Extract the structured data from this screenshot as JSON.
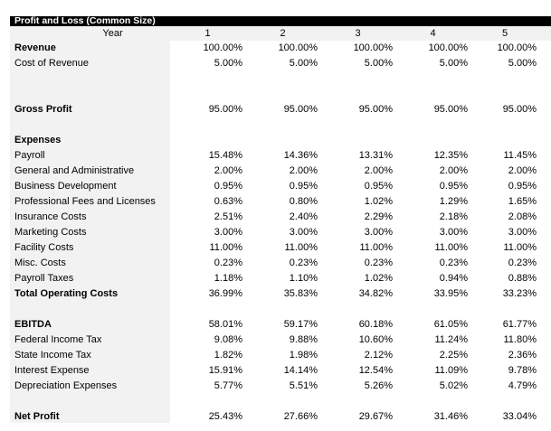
{
  "title": "Profit and Loss (Common Size)",
  "header": {
    "label": "Year",
    "years": [
      "1",
      "2",
      "3",
      "4",
      "5"
    ]
  },
  "rows": [
    {
      "label": "Revenue",
      "bold": true,
      "values": [
        "100.00%",
        "100.00%",
        "100.00%",
        "100.00%",
        "100.00%"
      ]
    },
    {
      "label": "Cost of Revenue",
      "values": [
        "5.00%",
        "5.00%",
        "5.00%",
        "5.00%",
        "5.00%"
      ]
    },
    {
      "label": "",
      "values": []
    },
    {
      "label": "",
      "values": []
    },
    {
      "label": "Gross Profit",
      "bold": true,
      "values": [
        "95.00%",
        "95.00%",
        "95.00%",
        "95.00%",
        "95.00%"
      ]
    },
    {
      "label": "",
      "values": []
    },
    {
      "label": "Expenses",
      "bold": true,
      "values": []
    },
    {
      "label": "Payroll",
      "values": [
        "15.48%",
        "14.36%",
        "13.31%",
        "12.35%",
        "11.45%"
      ]
    },
    {
      "label": "General and Administrative",
      "values": [
        "2.00%",
        "2.00%",
        "2.00%",
        "2.00%",
        "2.00%"
      ]
    },
    {
      "label": "Business Development",
      "values": [
        "0.95%",
        "0.95%",
        "0.95%",
        "0.95%",
        "0.95%"
      ]
    },
    {
      "label": "Professional Fees and Licenses",
      "values": [
        "0.63%",
        "0.80%",
        "1.02%",
        "1.29%",
        "1.65%"
      ]
    },
    {
      "label": "Insurance Costs",
      "values": [
        "2.51%",
        "2.40%",
        "2.29%",
        "2.18%",
        "2.08%"
      ]
    },
    {
      "label": "Marketing Costs",
      "values": [
        "3.00%",
        "3.00%",
        "3.00%",
        "3.00%",
        "3.00%"
      ]
    },
    {
      "label": "Facility Costs",
      "values": [
        "11.00%",
        "11.00%",
        "11.00%",
        "11.00%",
        "11.00%"
      ]
    },
    {
      "label": "Misc. Costs",
      "values": [
        "0.23%",
        "0.23%",
        "0.23%",
        "0.23%",
        "0.23%"
      ]
    },
    {
      "label": "Payroll Taxes",
      "values": [
        "1.18%",
        "1.10%",
        "1.02%",
        "0.94%",
        "0.88%"
      ]
    },
    {
      "label": "Total Operating Costs",
      "bold": true,
      "values": [
        "36.99%",
        "35.83%",
        "34.82%",
        "33.95%",
        "33.23%"
      ]
    },
    {
      "label": "",
      "values": []
    },
    {
      "label": "EBITDA",
      "bold": true,
      "values": [
        "58.01%",
        "59.17%",
        "60.18%",
        "61.05%",
        "61.77%"
      ]
    },
    {
      "label": "Federal Income Tax",
      "values": [
        "9.08%",
        "9.88%",
        "10.60%",
        "11.24%",
        "11.80%"
      ]
    },
    {
      "label": "State Income Tax",
      "values": [
        "1.82%",
        "1.98%",
        "2.12%",
        "2.25%",
        "2.36%"
      ]
    },
    {
      "label": "Interest Expense",
      "values": [
        "15.91%",
        "14.14%",
        "12.54%",
        "11.09%",
        "9.78%"
      ]
    },
    {
      "label": "Depreciation Expenses",
      "values": [
        "5.77%",
        "5.51%",
        "5.26%",
        "5.02%",
        "4.79%"
      ]
    },
    {
      "label": "",
      "values": []
    },
    {
      "label": "Net Profit",
      "bold": true,
      "values": [
        "25.43%",
        "27.66%",
        "29.67%",
        "31.46%",
        "33.04%"
      ]
    }
  ]
}
